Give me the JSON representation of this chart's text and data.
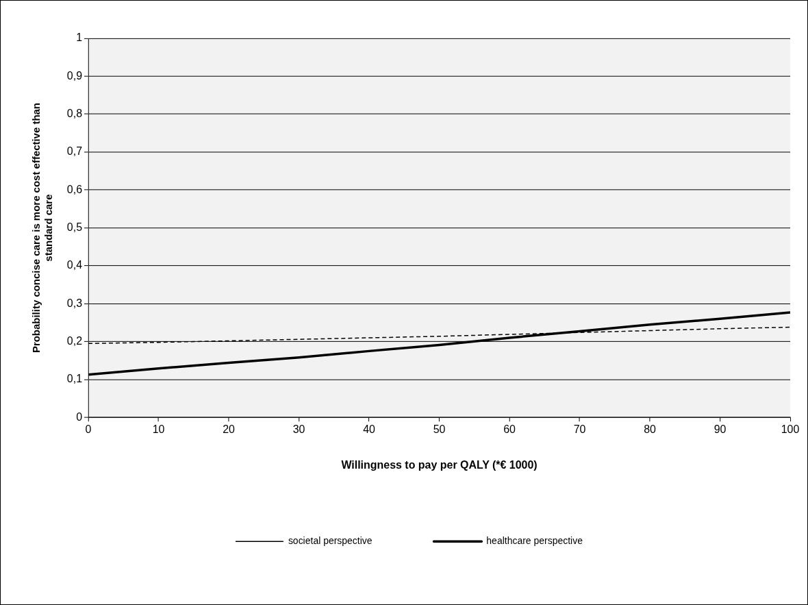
{
  "chart_data": {
    "type": "line",
    "xlabel": "Willingness to pay per QALY (*€ 1000)",
    "ylabel": "Probability concise care is more cost effective than standard care",
    "x": [
      0,
      10,
      20,
      30,
      40,
      50,
      60,
      70,
      80,
      90,
      100
    ],
    "series": [
      {
        "name": "societal perspective",
        "color": "#000000",
        "line_style": "dashed",
        "values": [
          0.195,
          0.198,
          0.202,
          0.206,
          0.21,
          0.214,
          0.219,
          0.224,
          0.229,
          0.234,
          0.238
        ]
      },
      {
        "name": "healthcare perspective",
        "color": "#000000",
        "line_style": "solid",
        "values": [
          0.113,
          0.129,
          0.144,
          0.158,
          0.175,
          0.191,
          0.21,
          0.227,
          0.245,
          0.26,
          0.277
        ]
      }
    ],
    "xlim": [
      0,
      100
    ],
    "xticks": [
      0,
      10,
      20,
      30,
      40,
      50,
      60,
      70,
      80,
      90,
      100
    ],
    "ylim": [
      0,
      1
    ],
    "yticks": [
      0,
      {
        "value": 0.1,
        "label": "0,1"
      },
      {
        "value": 0.2,
        "label": "0,2"
      },
      {
        "value": 0.3,
        "label": "0,3"
      },
      {
        "value": 0.4,
        "label": "0,4"
      },
      {
        "value": 0.5,
        "label": "0,5"
      },
      {
        "value": 0.6,
        "label": "0,6"
      },
      {
        "value": 0.7,
        "label": "0,7"
      },
      {
        "value": 0.8,
        "label": "0,8"
      },
      {
        "value": 0.9,
        "label": "0,9"
      },
      1
    ],
    "grid": "y",
    "legend": "bottom",
    "marker": "none"
  }
}
